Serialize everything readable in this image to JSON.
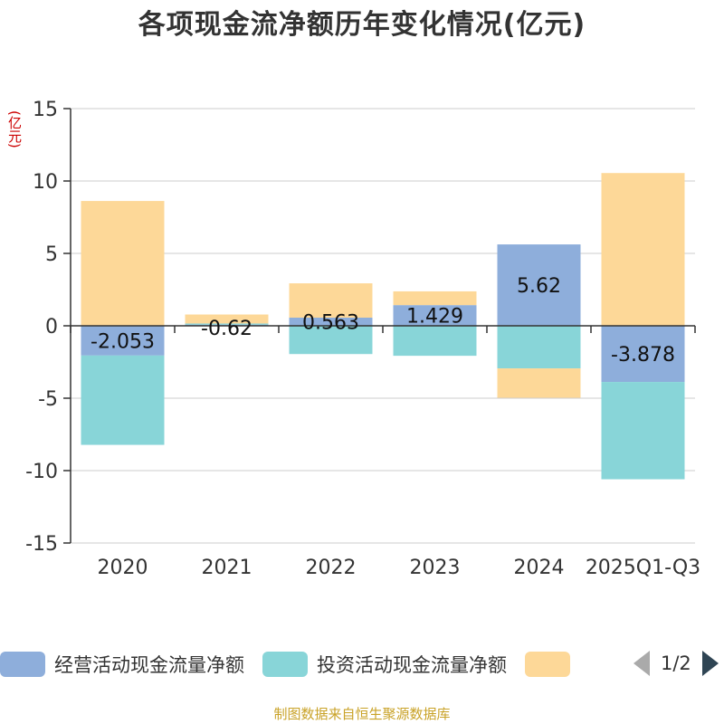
{
  "title": "各项现金流净额历年变化情况(亿元)",
  "unit_label": "(亿元)",
  "source": "制图数据来自恒生聚源数据库",
  "pager": {
    "text": "1/2"
  },
  "colors": {
    "operating": "#8eaedb",
    "investing": "#88d5d8",
    "financing": "#fdd898",
    "axis": "#333333",
    "grid": "#cccccc"
  },
  "chart_data": {
    "type": "bar",
    "stacked": true,
    "categories": [
      "2020",
      "2021",
      "2022",
      "2023",
      "2024",
      "2025Q1-Q3"
    ],
    "ylim": [
      -15,
      15
    ],
    "yticks": [
      15,
      10,
      5,
      0,
      -5,
      -10,
      -15
    ],
    "ytick_labels": [
      "15",
      "10",
      "5",
      "0",
      "-5",
      "-10",
      "-15"
    ],
    "grid": true,
    "legend_position": "bottom",
    "series": [
      {
        "name": "经营活动现金流量净额",
        "color": "#8eaedb",
        "values": [
          -2.053,
          0.08,
          0.563,
          1.429,
          5.62,
          -3.878
        ],
        "labels": [
          "-2.053",
          "",
          "0.563",
          "1.429",
          "5.62",
          "-3.878"
        ]
      },
      {
        "name": "投资活动现金流量净额",
        "color": "#88d5d8",
        "values": [
          -6.17,
          0.08,
          -1.95,
          -2.07,
          -2.94,
          -6.72
        ],
        "labels": [
          "",
          "",
          "",
          "",
          "",
          ""
        ]
      },
      {
        "name": "",
        "color": "#fdd898",
        "values": [
          8.62,
          0.62,
          2.37,
          0.95,
          -2.03,
          10.55
        ],
        "labels": [
          "",
          "",
          "",
          "",
          "",
          ""
        ]
      }
    ],
    "extra_labels": [
      {
        "category": "2021",
        "text": "-0.62"
      }
    ]
  }
}
